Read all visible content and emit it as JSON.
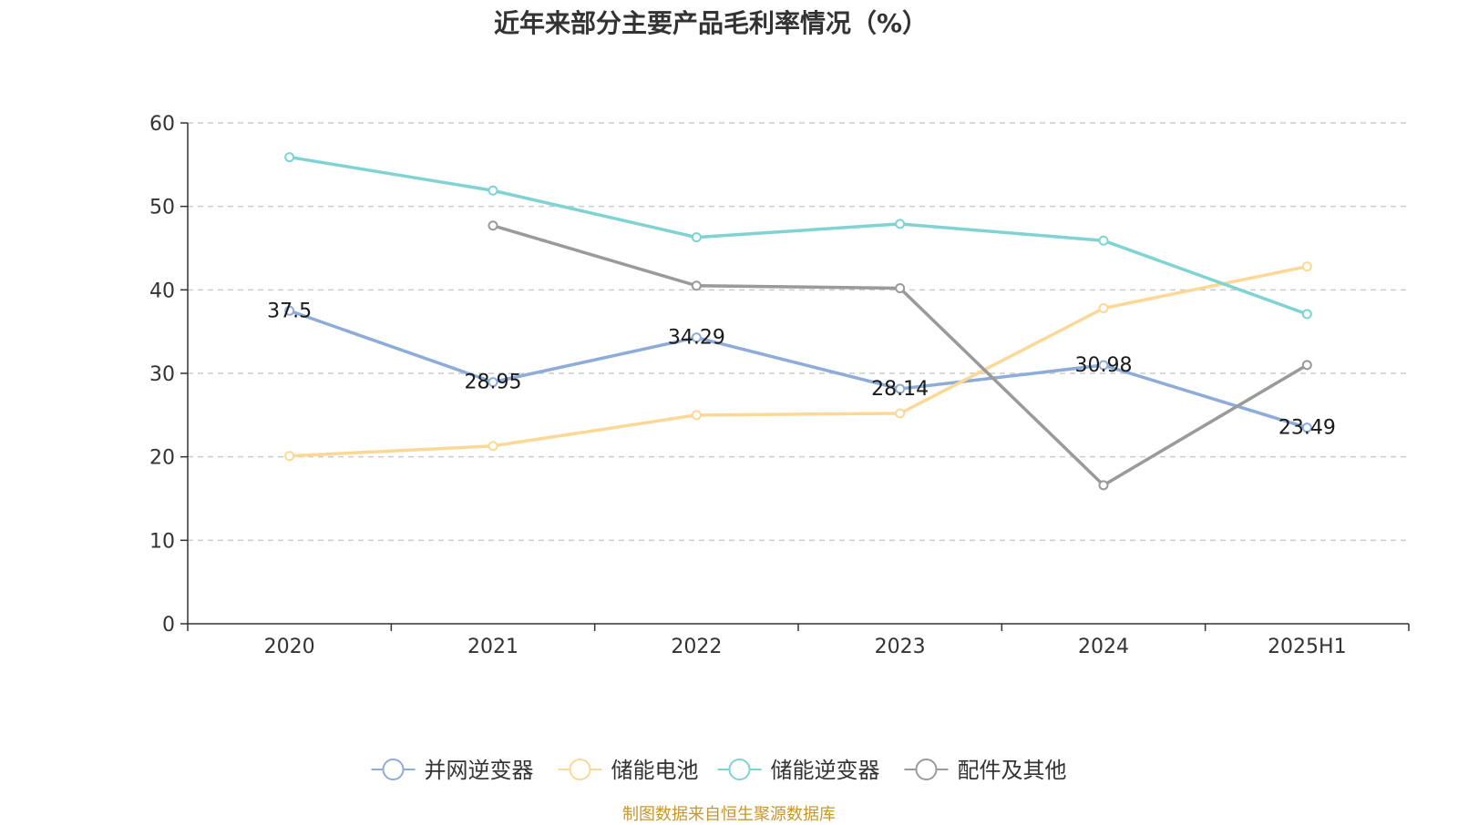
{
  "chart_data": {
    "type": "line",
    "title": "近年来部分主要产品毛利率情况（%）",
    "categories": [
      "2020",
      "2021",
      "2022",
      "2023",
      "2024",
      "2025H1"
    ],
    "ylim": [
      0,
      60
    ],
    "yticks": [
      "0",
      "10",
      "20",
      "30",
      "40",
      "50",
      "60"
    ],
    "grid": true,
    "legend_position": "bottom",
    "series": [
      {
        "name": "并网逆变器",
        "color": "#8eacd8",
        "values": [
          37.5,
          28.95,
          34.29,
          28.14,
          30.98,
          23.49
        ],
        "labels": [
          "37.5",
          "28.95",
          "34.29",
          "28.14",
          "30.98",
          "23.49"
        ]
      },
      {
        "name": "储能电池",
        "color": "#fbd896",
        "values": [
          20.1,
          21.3,
          25.0,
          25.2,
          37.8,
          42.8
        ],
        "labels": []
      },
      {
        "name": "储能逆变器",
        "color": "#7fd3d3",
        "values": [
          55.9,
          51.9,
          46.3,
          47.9,
          45.9,
          37.1
        ],
        "labels": []
      },
      {
        "name": "配件及其他",
        "color": "#9a9a9a",
        "values": [
          null,
          47.7,
          40.5,
          40.2,
          16.6,
          31.0
        ],
        "labels": []
      }
    ]
  },
  "source_note": "制图数据来自恒生聚源数据库"
}
